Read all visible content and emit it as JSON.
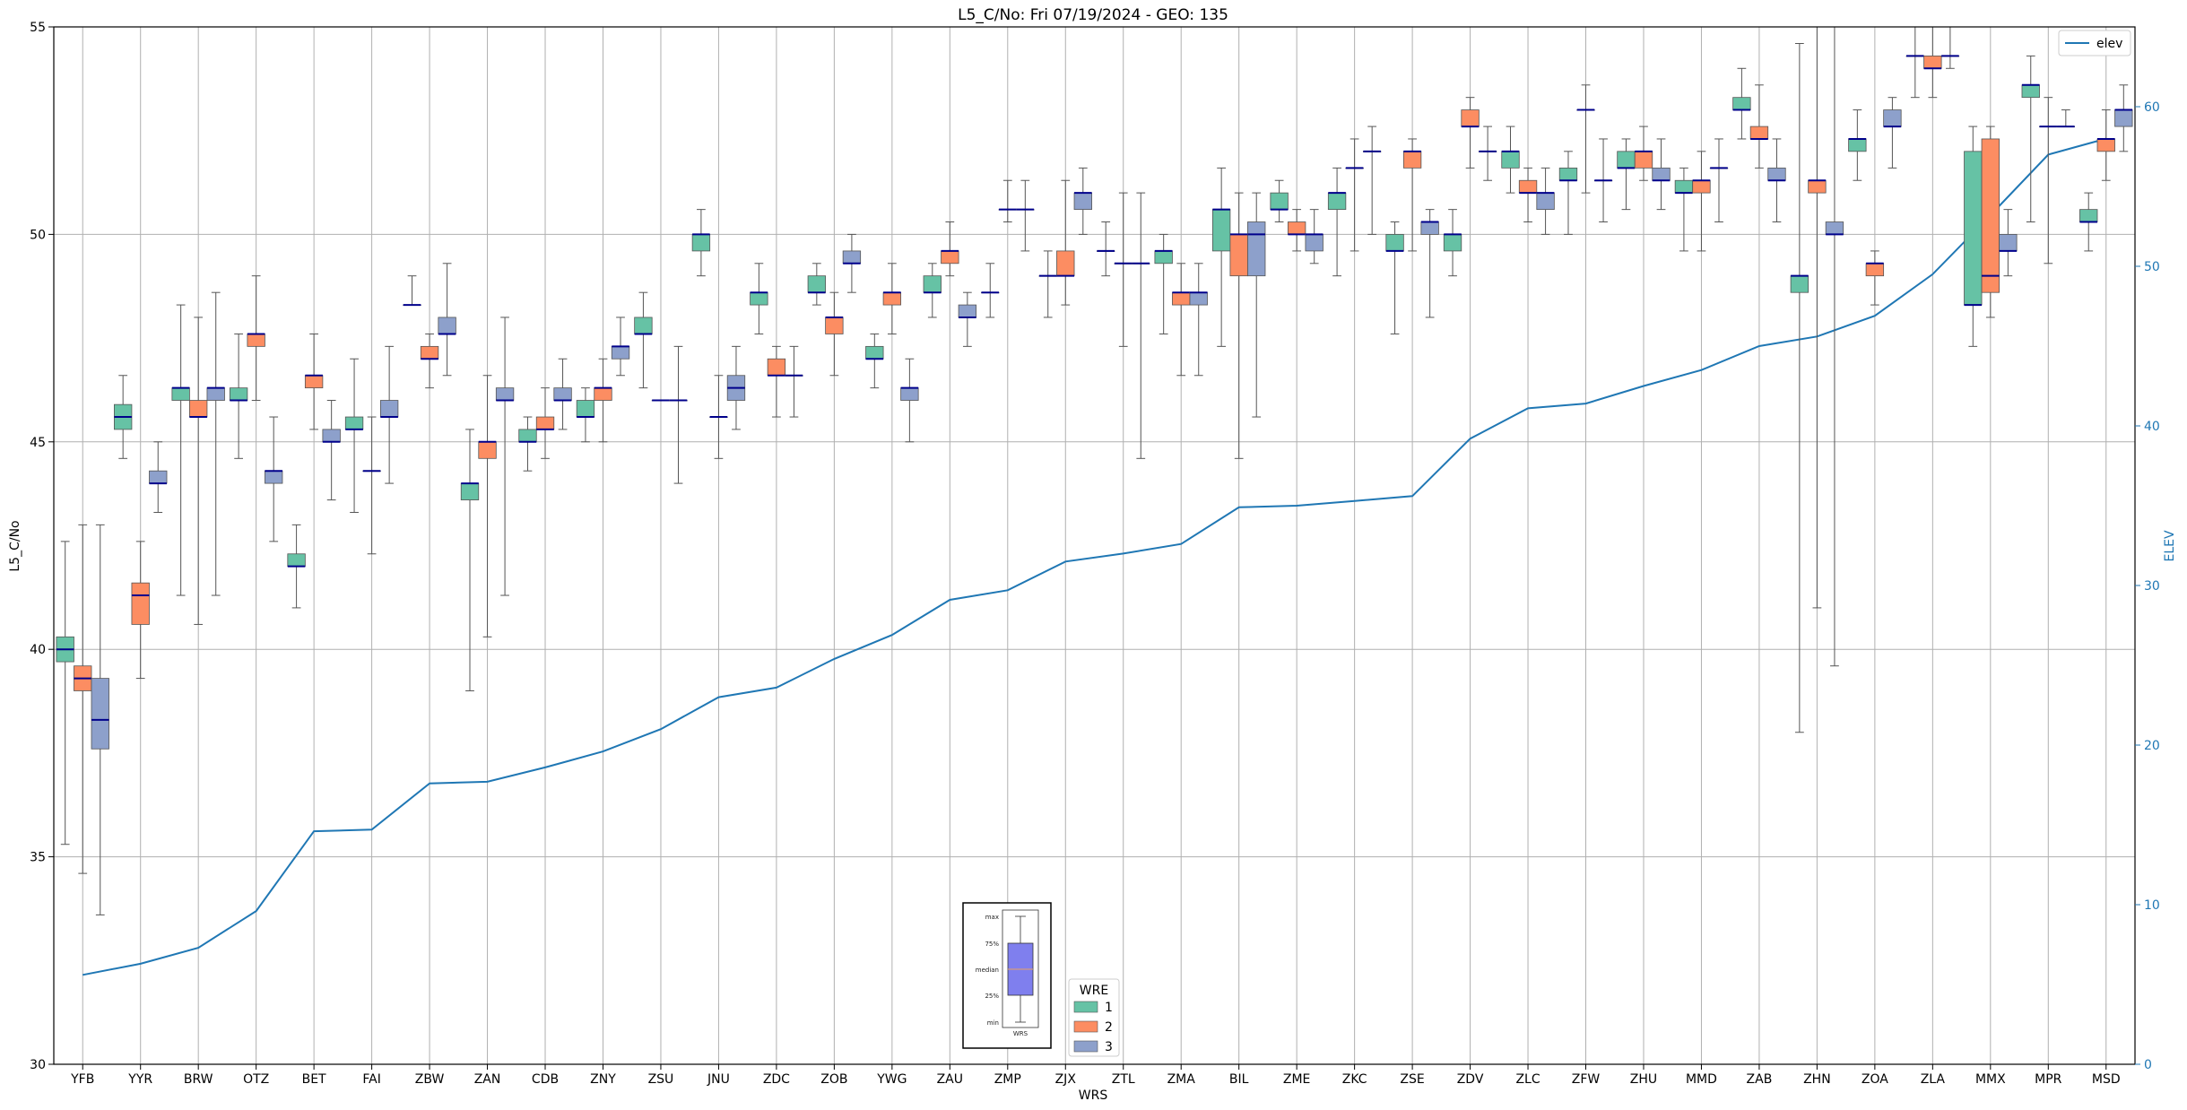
{
  "chart_data": {
    "type": "box",
    "title": "L5_C/No: Fri 07/19/2024 - GEO: 135",
    "xlabel": "WRS",
    "ylabel": "L5_C/No",
    "y2label": "ELEV",
    "ylim": [
      30,
      55
    ],
    "y2lim": [
      0,
      65
    ],
    "yticks": [
      30,
      35,
      40,
      45,
      50,
      55
    ],
    "y2ticks": [
      0,
      10,
      20,
      30,
      40,
      50,
      60
    ],
    "grid": true,
    "categories": [
      "YFB",
      "YYR",
      "BRW",
      "OTZ",
      "BET",
      "FAI",
      "ZBW",
      "ZAN",
      "CDB",
      "ZNY",
      "ZSU",
      "JNU",
      "ZDC",
      "ZOB",
      "YWG",
      "ZAU",
      "ZMP",
      "ZJX",
      "ZTL",
      "ZMA",
      "BIL",
      "ZME",
      "ZKC",
      "ZSE",
      "ZDV",
      "ZLC",
      "ZFW",
      "ZHU",
      "MMD",
      "ZAB",
      "ZHN",
      "ZOA",
      "ZLA",
      "MMX",
      "MPR",
      "MSD"
    ],
    "colors": {
      "1": "#66c2a5",
      "2": "#fc8d62",
      "3": "#8da0cb",
      "median": "#00008b",
      "elev": "#1f77b4",
      "whisker": "#555555",
      "grid": "#b0b0b0"
    },
    "legend_elev": {
      "label": "elev",
      "placement": "top-right"
    },
    "legend_wre": {
      "title": "WRE",
      "placement": "lower-center",
      "entries": [
        {
          "key": "1",
          "label": "1"
        },
        {
          "key": "2",
          "label": "2"
        },
        {
          "key": "3",
          "label": "3"
        }
      ]
    },
    "box_key": {
      "labels": [
        "max",
        "75%",
        "median",
        "25%",
        "min"
      ],
      "xlabel": "WRS"
    },
    "elev": [
      5.6,
      6.3,
      7.3,
      9.6,
      14.6,
      14.7,
      17.6,
      17.7,
      18.6,
      19.6,
      21.0,
      23.0,
      23.6,
      25.4,
      26.9,
      29.1,
      29.7,
      31.5,
      32.0,
      32.6,
      34.9,
      35.0,
      35.3,
      35.6,
      39.2,
      41.1,
      41.4,
      42.5,
      43.5,
      45.0,
      45.6,
      46.9,
      49.5,
      53.2,
      57.0,
      58.0
    ],
    "series": [
      {
        "name": "1",
        "boxes": [
          [
            0,
            35.3,
            39.7,
            40.0,
            40.3,
            42.6
          ],
          [
            1,
            44.6,
            45.3,
            45.6,
            45.9,
            46.6
          ],
          [
            2,
            41.3,
            46.0,
            46.3,
            46.3,
            48.3
          ],
          [
            3,
            44.6,
            46.0,
            46.0,
            46.3,
            47.6
          ],
          [
            4,
            41.0,
            42.0,
            42.0,
            42.3,
            43.0
          ],
          [
            5,
            43.3,
            45.3,
            45.3,
            45.6,
            47.0
          ],
          [
            6,
            48.3,
            48.3,
            48.3,
            48.3,
            49.0
          ],
          [
            7,
            39.0,
            43.6,
            44.0,
            44.0,
            45.3
          ],
          [
            8,
            44.3,
            45.0,
            45.0,
            45.3,
            45.6
          ],
          [
            9,
            45.0,
            45.6,
            45.6,
            46.0,
            46.3
          ],
          [
            10,
            46.3,
            47.6,
            47.6,
            48.0,
            48.6
          ],
          [
            11,
            49.0,
            49.6,
            50.0,
            50.0,
            50.6
          ],
          [
            12,
            47.6,
            48.3,
            48.6,
            48.6,
            49.3
          ],
          [
            13,
            48.3,
            48.6,
            48.6,
            49.0,
            49.3
          ],
          [
            14,
            46.3,
            47.0,
            47.0,
            47.3,
            47.6
          ],
          [
            15,
            48.0,
            48.6,
            48.6,
            49.0,
            49.3
          ],
          [
            16,
            48.0,
            48.6,
            48.6,
            48.6,
            49.3
          ],
          [
            17,
            48.0,
            49.0,
            49.0,
            49.0,
            49.6
          ],
          [
            18,
            49.0,
            49.6,
            49.6,
            49.6,
            50.3
          ],
          [
            19,
            47.6,
            49.3,
            49.6,
            49.6,
            50.0
          ],
          [
            20,
            47.3,
            49.6,
            50.6,
            50.6,
            51.6
          ],
          [
            21,
            50.3,
            50.6,
            50.6,
            51.0,
            51.3
          ],
          [
            22,
            49.0,
            50.6,
            51.0,
            51.0,
            51.6
          ],
          [
            23,
            47.6,
            49.6,
            49.6,
            50.0,
            50.3
          ],
          [
            24,
            49.0,
            49.6,
            50.0,
            50.0,
            50.6
          ],
          [
            25,
            51.0,
            51.6,
            52.0,
            52.0,
            52.6
          ],
          [
            26,
            50.0,
            51.3,
            51.3,
            51.6,
            52.0
          ],
          [
            27,
            50.6,
            51.6,
            51.6,
            52.0,
            52.3
          ],
          [
            28,
            49.6,
            51.0,
            51.0,
            51.3,
            51.6
          ],
          [
            29,
            52.3,
            53.0,
            53.0,
            53.3,
            54.0
          ],
          [
            30,
            38.0,
            48.6,
            49.0,
            49.0,
            54.6
          ],
          [
            31,
            51.3,
            52.0,
            52.3,
            52.3,
            53.0
          ],
          [
            32,
            53.3,
            54.3,
            54.3,
            54.3,
            55.0
          ],
          [
            33,
            47.3,
            48.3,
            48.3,
            52.0,
            52.6
          ],
          [
            34,
            50.3,
            53.3,
            53.6,
            53.6,
            54.3
          ],
          [
            35,
            49.6,
            50.3,
            50.3,
            50.6,
            51.0
          ]
        ]
      },
      {
        "name": "2",
        "boxes": [
          [
            0,
            34.6,
            39.0,
            39.3,
            39.6,
            43.0
          ],
          [
            1,
            39.3,
            40.6,
            41.3,
            41.6,
            42.6
          ],
          [
            2,
            40.6,
            45.6,
            45.6,
            46.0,
            48.0
          ],
          [
            3,
            46.0,
            47.3,
            47.6,
            47.6,
            49.0
          ],
          [
            4,
            45.3,
            46.3,
            46.6,
            46.6,
            47.6
          ],
          [
            5,
            42.3,
            44.3,
            44.3,
            44.3,
            45.6
          ],
          [
            6,
            46.3,
            47.0,
            47.0,
            47.3,
            47.6
          ],
          [
            7,
            40.3,
            44.6,
            45.0,
            45.0,
            46.6
          ],
          [
            8,
            44.6,
            45.3,
            45.3,
            45.6,
            46.3
          ],
          [
            9,
            45.0,
            46.0,
            46.3,
            46.3,
            47.0
          ],
          [
            10,
            46.0,
            46.0,
            46.0,
            46.0,
            46.0
          ],
          [
            11,
            44.6,
            45.6,
            45.6,
            45.6,
            46.6
          ],
          [
            12,
            45.6,
            46.6,
            46.6,
            47.0,
            47.3
          ],
          [
            13,
            46.6,
            47.6,
            48.0,
            48.0,
            48.6
          ],
          [
            14,
            47.6,
            48.3,
            48.6,
            48.6,
            49.3
          ],
          [
            15,
            49.0,
            49.3,
            49.6,
            49.6,
            50.3
          ],
          [
            16,
            50.3,
            50.6,
            50.6,
            50.6,
            51.3
          ],
          [
            17,
            48.3,
            49.0,
            49.0,
            49.6,
            51.3
          ],
          [
            18,
            47.3,
            49.3,
            49.3,
            49.3,
            51.0
          ],
          [
            19,
            46.6,
            48.3,
            48.6,
            48.6,
            49.3
          ],
          [
            20,
            44.6,
            49.0,
            50.0,
            50.0,
            51.0
          ],
          [
            21,
            49.6,
            50.0,
            50.0,
            50.3,
            50.6
          ],
          [
            22,
            49.6,
            51.6,
            51.6,
            51.6,
            52.3
          ],
          [
            23,
            49.6,
            51.6,
            52.0,
            52.0,
            52.3
          ],
          [
            24,
            51.6,
            52.6,
            52.6,
            53.0,
            53.3
          ],
          [
            25,
            50.3,
            51.0,
            51.0,
            51.3,
            51.6
          ],
          [
            26,
            51.0,
            53.0,
            53.0,
            53.0,
            53.6
          ],
          [
            27,
            51.3,
            51.6,
            52.0,
            52.0,
            52.6
          ],
          [
            28,
            49.6,
            51.0,
            51.3,
            51.3,
            52.0
          ],
          [
            29,
            51.6,
            52.3,
            52.3,
            52.6,
            53.6
          ],
          [
            30,
            41.0,
            51.0,
            51.3,
            51.3,
            55.0
          ],
          [
            31,
            48.3,
            49.0,
            49.3,
            49.3,
            49.6
          ],
          [
            32,
            53.3,
            54.0,
            54.0,
            54.3,
            55.0
          ],
          [
            33,
            48.0,
            48.6,
            49.0,
            52.3,
            52.6
          ],
          [
            34,
            49.3,
            52.6,
            52.6,
            52.6,
            53.3
          ],
          [
            35,
            51.3,
            52.0,
            52.3,
            52.3,
            53.0
          ]
        ]
      },
      {
        "name": "3",
        "boxes": [
          [
            0,
            33.6,
            37.6,
            38.3,
            39.3,
            43.0
          ],
          [
            1,
            43.3,
            44.0,
            44.0,
            44.3,
            45.0
          ],
          [
            2,
            41.3,
            46.0,
            46.3,
            46.3,
            48.6
          ],
          [
            3,
            42.6,
            44.0,
            44.3,
            44.3,
            45.6
          ],
          [
            4,
            43.6,
            45.0,
            45.0,
            45.3,
            46.0
          ],
          [
            5,
            44.0,
            45.6,
            45.6,
            46.0,
            47.3
          ],
          [
            6,
            46.6,
            47.6,
            47.6,
            48.0,
            49.3
          ],
          [
            7,
            41.3,
            46.0,
            46.0,
            46.3,
            48.0
          ],
          [
            8,
            45.3,
            46.0,
            46.0,
            46.3,
            47.0
          ],
          [
            9,
            46.6,
            47.0,
            47.3,
            47.3,
            48.0
          ],
          [
            10,
            44.0,
            46.0,
            46.0,
            46.0,
            47.3
          ],
          [
            11,
            45.3,
            46.0,
            46.3,
            46.6,
            47.3
          ],
          [
            12,
            45.6,
            46.6,
            46.6,
            46.6,
            47.3
          ],
          [
            13,
            48.6,
            49.3,
            49.3,
            49.6,
            50.0
          ],
          [
            14,
            45.0,
            46.0,
            46.3,
            46.3,
            47.0
          ],
          [
            15,
            47.3,
            48.0,
            48.0,
            48.3,
            48.6
          ],
          [
            16,
            49.6,
            50.6,
            50.6,
            50.6,
            51.3
          ],
          [
            17,
            50.0,
            50.6,
            51.0,
            51.0,
            51.6
          ],
          [
            18,
            44.6,
            49.3,
            49.3,
            49.3,
            51.0
          ],
          [
            19,
            46.6,
            48.3,
            48.6,
            48.6,
            49.3
          ],
          [
            20,
            45.6,
            49.0,
            50.0,
            50.3,
            51.0
          ],
          [
            21,
            49.3,
            49.6,
            50.0,
            50.0,
            50.6
          ],
          [
            22,
            50.0,
            52.0,
            52.0,
            52.0,
            52.6
          ],
          [
            23,
            48.0,
            50.0,
            50.3,
            50.3,
            50.6
          ],
          [
            24,
            51.3,
            52.0,
            52.0,
            52.0,
            52.6
          ],
          [
            25,
            50.0,
            50.6,
            51.0,
            51.0,
            51.6
          ],
          [
            26,
            50.3,
            51.3,
            51.3,
            51.3,
            52.3
          ],
          [
            27,
            50.6,
            51.3,
            51.3,
            51.6,
            52.3
          ],
          [
            28,
            50.3,
            51.6,
            51.6,
            51.6,
            52.3
          ],
          [
            29,
            50.3,
            51.3,
            51.3,
            51.6,
            52.3
          ],
          [
            30,
            39.6,
            50.0,
            50.0,
            50.3,
            55.0
          ],
          [
            31,
            51.6,
            52.6,
            52.6,
            53.0,
            53.3
          ],
          [
            32,
            54.0,
            54.3,
            54.3,
            54.3,
            55.0
          ],
          [
            33,
            49.0,
            49.6,
            49.6,
            50.0,
            50.6
          ],
          [
            34,
            52.6,
            52.6,
            52.6,
            52.6,
            53.0
          ],
          [
            35,
            52.0,
            52.6,
            53.0,
            53.0,
            53.6
          ]
        ]
      }
    ]
  }
}
